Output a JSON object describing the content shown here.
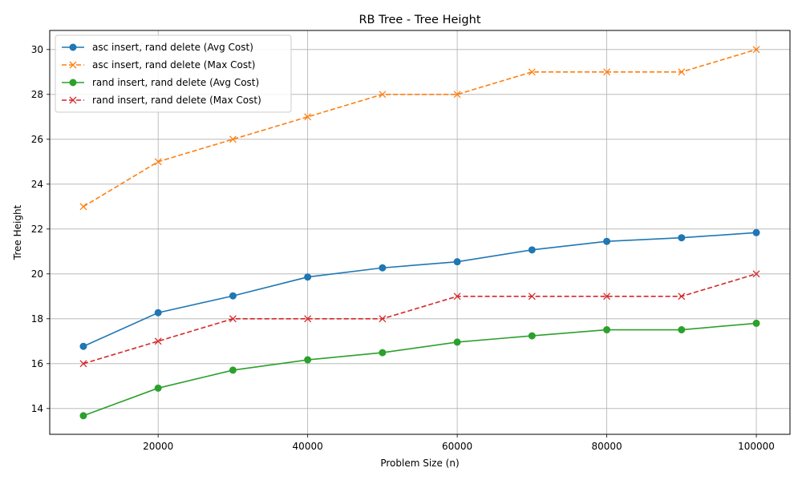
{
  "chart_data": {
    "type": "line",
    "title": "RB Tree - Tree Height",
    "xlabel": "Problem Size (n)",
    "ylabel": "Tree Height",
    "x": [
      10000,
      20000,
      30000,
      40000,
      50000,
      60000,
      70000,
      80000,
      90000,
      100000
    ],
    "xlim": [
      5500,
      104500
    ],
    "ylim": [
      12.85,
      30.85
    ],
    "xticks": [
      20000,
      40000,
      60000,
      80000,
      100000
    ],
    "xtick_labels": [
      "20000",
      "40000",
      "60000",
      "80000",
      "100000"
    ],
    "yticks": [
      14,
      16,
      18,
      20,
      22,
      24,
      26,
      28,
      30
    ],
    "ytick_labels": [
      "14",
      "16",
      "18",
      "20",
      "22",
      "24",
      "26",
      "28",
      "30"
    ],
    "grid": true,
    "legend_position": "top-left",
    "series": [
      {
        "name": "asc insert, rand delete (Avg Cost)",
        "color": "#1f77b4",
        "linestyle": "solid",
        "marker": "circle",
        "values": [
          16.77,
          18.27,
          19.02,
          19.86,
          20.27,
          20.54,
          21.07,
          21.45,
          21.61,
          21.84
        ]
      },
      {
        "name": "asc insert, rand delete (Max Cost)",
        "color": "#ff7f0e",
        "linestyle": "dashed",
        "marker": "x",
        "values": [
          23,
          25,
          26,
          27,
          28,
          28,
          29,
          29,
          29,
          30
        ]
      },
      {
        "name": "rand insert, rand delete (Avg Cost)",
        "color": "#2ca02c",
        "linestyle": "solid",
        "marker": "circle",
        "values": [
          13.68,
          14.91,
          15.71,
          16.17,
          16.49,
          16.96,
          17.24,
          17.51,
          17.51,
          17.8
        ]
      },
      {
        "name": "rand insert, rand delete (Max Cost)",
        "color": "#d62728",
        "linestyle": "dashed",
        "marker": "x",
        "values": [
          16,
          17,
          18,
          18,
          18,
          19,
          19,
          19,
          19,
          20
        ]
      }
    ]
  }
}
